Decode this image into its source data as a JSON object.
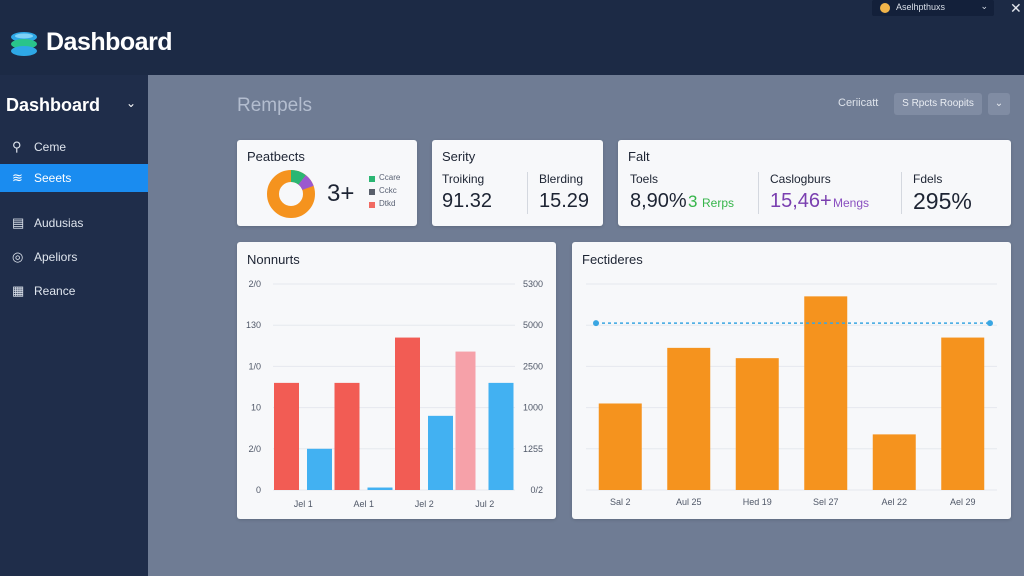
{
  "header": {
    "app_title": "Dashboard",
    "account_name": "Aselhpthuxs",
    "logo_icon": "stack-icon",
    "brand_colors": [
      "#2ea8e6",
      "#29c48a"
    ]
  },
  "sidebar": {
    "heading": "Dashboard",
    "items": [
      {
        "label": "Ceme",
        "icon": "pin-icon",
        "active": false
      },
      {
        "label": "Seeets",
        "icon": "layers-icon",
        "active": true
      },
      {
        "label": "Audusias",
        "icon": "folder-icon",
        "active": false
      },
      {
        "label": "Apeliors",
        "icon": "globe-icon",
        "active": false
      },
      {
        "label": "Reance",
        "icon": "document-icon",
        "active": false
      }
    ]
  },
  "main": {
    "page_title": "Rempels",
    "filter_label": "Ceriicatt",
    "filter_button": "S Rpcts Roopits"
  },
  "cards": {
    "c1": {
      "title": "Peatbects",
      "value": "3+",
      "legend": [
        {
          "label": "Ccare",
          "color": "#2bb673"
        },
        {
          "label": "Cckc",
          "color": "#595f6b"
        },
        {
          "label": "Dtkd",
          "color": "#f16a62"
        }
      ]
    },
    "c2": {
      "title": "Serity",
      "metrics": [
        {
          "label": "Troiking",
          "value": "91.32"
        },
        {
          "label": "Blerding",
          "value": "15.29"
        }
      ]
    },
    "c3": {
      "title": "Falt",
      "metrics": [
        {
          "label": "Toels",
          "value": "8,90%",
          "extra": "3 Rerps",
          "extra_color": "#36b54a"
        },
        {
          "label": "Caslogburs",
          "value": "15,46+",
          "value_color": "#7a3fb0",
          "extra": "Mengs",
          "extra_color": "#8a4fc0"
        },
        {
          "label": "Fdels",
          "value": "295%"
        }
      ]
    }
  },
  "chart_data": [
    {
      "type": "bar",
      "title": "Nonnurts",
      "categories": [
        "Jel 1",
        "Ael 1",
        "Jel 2",
        "Jul 2"
      ],
      "y_left_ticks": [
        "0",
        "2/0",
        "10",
        "1/0",
        "130",
        "2/0"
      ],
      "y_right_ticks": [
        "0/2",
        "1255",
        "1000",
        "2500",
        "5000",
        "5300"
      ],
      "ylim": [
        0,
        25
      ],
      "series": [
        {
          "color": "#f25c54",
          "values": [
            13,
            13,
            18.5,
            0
          ]
        },
        {
          "color": "#42b1f2",
          "values": [
            5,
            0.3,
            9,
            13
          ]
        },
        {
          "color": "#f6a1a9",
          "values": [
            0,
            0,
            0,
            16.8
          ]
        }
      ]
    },
    {
      "type": "bar",
      "title": "Fectideres",
      "categories": [
        "Sal 2",
        "Aul 25",
        "Hed 19",
        "Sel 27",
        "Ael 22",
        "Ael 29"
      ],
      "values": [
        42,
        69,
        64,
        94,
        27,
        74
      ],
      "reference_line": 81,
      "ylim": [
        0,
        100
      ],
      "color": "#f5931e",
      "reference_color": "#3aa6e2"
    }
  ]
}
